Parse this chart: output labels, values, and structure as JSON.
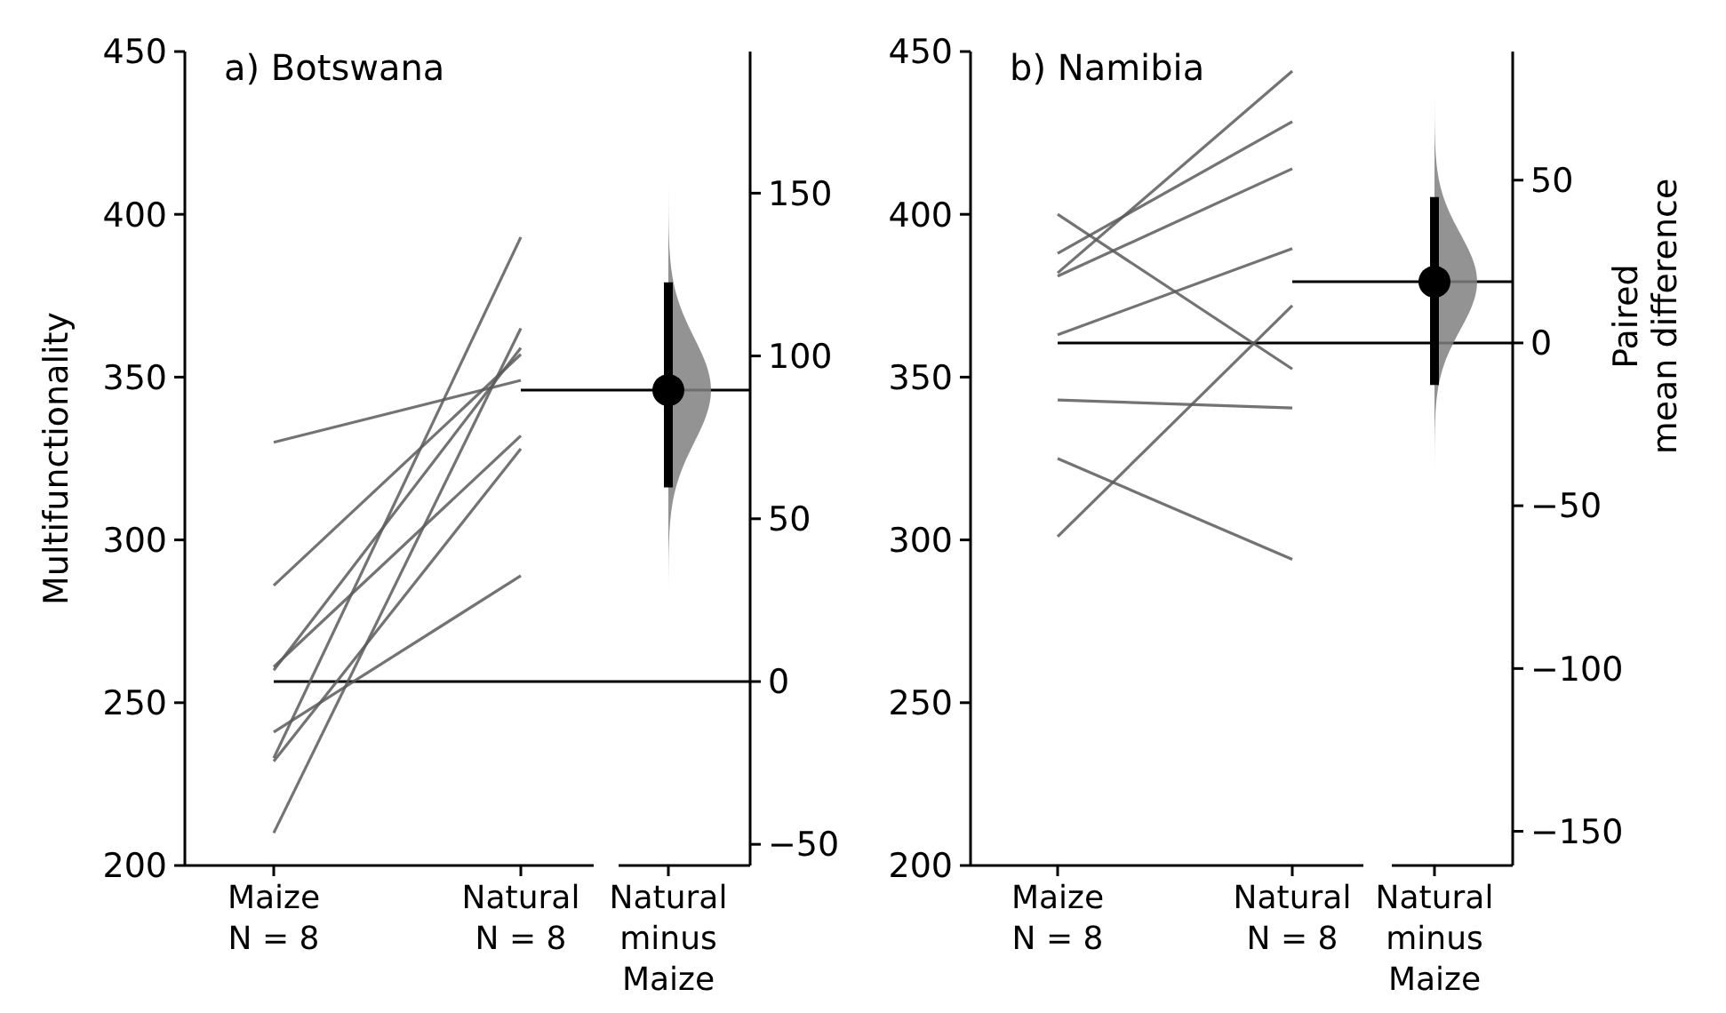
{
  "chart_data": [
    {
      "type": "line",
      "title": "a) Botswana",
      "ylabel": "Multifunctionality",
      "categories": [
        "Maize\nN = 8",
        "Natural\nN = 8",
        "Natural\nminus\nMaize"
      ],
      "ylim": [
        200,
        450
      ],
      "yticks": [
        200,
        250,
        300,
        350,
        400,
        450
      ],
      "y2lim": [
        -56.5,
        193.5
      ],
      "y2ticks": [
        {
          "value": -50,
          "label": "−50"
        },
        0,
        50,
        100,
        150
      ],
      "marker": "none",
      "series": [
        {
          "color": "#5a5a5a",
          "values": [
            330,
            349,
            null
          ]
        },
        {
          "color": "#5a5a5a",
          "values": [
            286,
            357,
            null
          ]
        },
        {
          "color": "#5a5a5a",
          "values": [
            261,
            332,
            null
          ]
        },
        {
          "color": "#5a5a5a",
          "values": [
            260,
            359,
            null
          ]
        },
        {
          "color": "#5a5a5a",
          "values": [
            241,
            289,
            null
          ]
        },
        {
          "color": "#5a5a5a",
          "values": [
            233,
            393,
            null
          ]
        },
        {
          "color": "#5a5a5a",
          "values": [
            232,
            328,
            null
          ]
        },
        {
          "color": "#5a5a5a",
          "values": [
            210,
            365,
            null
          ]
        },
        {
          "type": "scatter",
          "axis": "y2",
          "marker": "circle",
          "color": "#000000",
          "x": [
            "Natural\nminus\nMaize"
          ],
          "values": [
            89.5
          ],
          "errors": [
            [
              59.6,
              122.6
            ]
          ]
        }
      ],
      "ref_lines": [
        {
          "axis": "y2",
          "value": 0,
          "color": "#000000"
        },
        {
          "axis": "y2",
          "value": 89.5,
          "color": "#000000"
        }
      ]
    },
    {
      "type": "line",
      "title": "b) Namibia",
      "y2label": "Paired\nmean difference",
      "categories": [
        "Maize\nN = 8",
        "Natural\nN = 8",
        "Natural\nminus\nMaize"
      ],
      "ylim": [
        200,
        450
      ],
      "yticks": [
        200,
        250,
        300,
        350,
        400,
        450
      ],
      "y2lim": [
        -160.5,
        89.5
      ],
      "y2ticks": [
        {
          "value": -150,
          "label": "−150"
        },
        {
          "value": -100,
          "label": "−100"
        },
        {
          "value": -50,
          "label": "−50"
        },
        0,
        50
      ],
      "marker": "none",
      "series": [
        {
          "color": "#5a5a5a",
          "values": [
            400,
            352.5,
            null
          ]
        },
        {
          "color": "#5a5a5a",
          "values": [
            388,
            428.5,
            null
          ]
        },
        {
          "color": "#5a5a5a",
          "values": [
            382,
            444,
            null
          ]
        },
        {
          "color": "#5a5a5a",
          "values": [
            381,
            414,
            null
          ]
        },
        {
          "color": "#5a5a5a",
          "values": [
            363,
            389.5,
            null
          ]
        },
        {
          "color": "#5a5a5a",
          "values": [
            343,
            340.5,
            null
          ]
        },
        {
          "color": "#5a5a5a",
          "values": [
            325,
            294,
            null
          ]
        },
        {
          "color": "#5a5a5a",
          "values": [
            301,
            372,
            null
          ]
        },
        {
          "type": "scatter",
          "axis": "y2",
          "marker": "circle",
          "color": "#000000",
          "x": [
            "Natural\nminus\nMaize"
          ],
          "values": [
            18.8
          ],
          "errors": [
            [
              -12.9,
              44.8
            ]
          ]
        }
      ],
      "ref_lines": [
        {
          "axis": "y2",
          "value": 0,
          "color": "#000000"
        },
        {
          "axis": "y2",
          "value": 18.8,
          "color": "#000000"
        }
      ]
    }
  ]
}
